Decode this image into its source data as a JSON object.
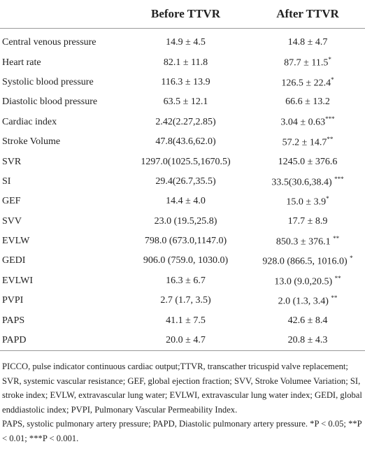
{
  "table": {
    "columns": [
      "Before TTVR",
      "After TTVR"
    ],
    "rows": [
      {
        "label": "Central venous pressure",
        "before": "14.9 ± 4.5",
        "after": "14.8 ± 4.7"
      },
      {
        "label": "Heart rate",
        "before": "82.1 ± 11.8",
        "after": "87.7 ± 11.5",
        "after_sig": "*"
      },
      {
        "label": "Systolic blood pressure",
        "before": "116.3 ± 13.9",
        "after": "126.5 ± 22.4",
        "after_sig": "*"
      },
      {
        "label": "Diastolic blood pressure",
        "before": "63.5 ± 12.1",
        "after": "66.6 ± 13.2"
      },
      {
        "label": "Cardiac index",
        "before": "2.42(2.27,2.85)",
        "after": "3.04 ± 0.63",
        "after_sig": "***"
      },
      {
        "label": "Stroke Volume",
        "before": "47.8(43.6,62.0)",
        "after": "57.2 ± 14.7",
        "after_sig": "**"
      },
      {
        "label": "SVR",
        "before": "1297.0(1025.5,1670.5)",
        "after": "1245.0 ± 376.6"
      },
      {
        "label": "SI",
        "before": "29.4(26.7,35.5)",
        "after": "33.5(30.6,38.4) ",
        "after_sig": "***"
      },
      {
        "label": "GEF",
        "before": "14.4 ± 4.0",
        "after": "15.0 ± 3.9",
        "after_sig": "*"
      },
      {
        "label": "SVV",
        "before": "23.0 (19.5,25.8)",
        "after": "17.7 ± 8.9"
      },
      {
        "label": "EVLW",
        "before": "798.0 (673.0,1147.0)",
        "after": "850.3 ± 376.1 ",
        "after_sig": "**"
      },
      {
        "label": "GEDI",
        "before": "906.0 (759.0, 1030.0)",
        "after": "928.0 (866.5, 1016.0) ",
        "after_sig": "*"
      },
      {
        "label": "EVLWI",
        "before": "16.3 ± 6.7",
        "after": "13.0 (9.0,20.5) ",
        "after_sig": "**"
      },
      {
        "label": "PVPI",
        "before": "2.7 (1.7, 3.5)",
        "after": "2.0 (1.3, 3.4) ",
        "after_sig": "**"
      },
      {
        "label": "PAPS",
        "before": "41.1 ± 7.5",
        "after": "42.6 ± 8.4"
      },
      {
        "label": "PAPD",
        "before": "20.0 ± 4.7",
        "after": "20.8 ± 4.3"
      }
    ]
  },
  "notes": [
    "PICCO, pulse indicator continuous cardiac output;TTVR, transcather tricuspid valve replacement; SVR, systemic vascular resistance; GEF, global ejection fraction; SVV, Stroke Volumee Variation; SI, stroke index; EVLW, extravascular lung water; EVLWI, extravascular lung water index; GEDI, global enddiastolic index; PVPI, Pulmonary Vascular Permeability Index.",
    "PAPS, systolic pulmonary artery pressure; PAPD, Diastolic pulmonary artery pressure. *P < 0.05; **P < 0.01; ***P < 0.001."
  ]
}
